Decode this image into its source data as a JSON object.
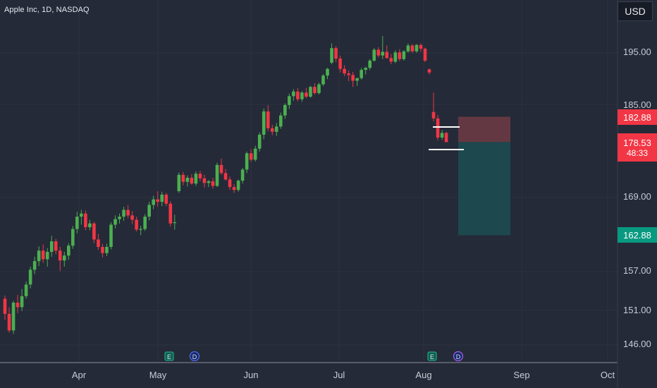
{
  "header": {
    "symbol_line": "Apple Inc, 1D, NASDAQ"
  },
  "currency": "USD",
  "chart_data": {
    "type": "candlestick",
    "symbol": "Apple Inc",
    "interval": "1D",
    "exchange": "NASDAQ",
    "colors": {
      "up": "#4caf50",
      "down": "#f23645",
      "background": "#242a38",
      "stop_zone": "#6b3a44",
      "target_zone": "#1e4a4e",
      "price_badge_red": "#f23645",
      "price_badge_green": "#089981"
    },
    "y_ticks": [
      "195.00",
      "185.00",
      "169.00",
      "157.00",
      "151.00",
      "146.00"
    ],
    "x_ticks": [
      "Apr",
      "May",
      "Jun",
      "Jul",
      "Aug",
      "Sep",
      "Oct"
    ],
    "price_labels": {
      "stop": "182.88",
      "current": "178.53",
      "countdown": "48:33",
      "target": "162.88"
    },
    "levels": {
      "stop": 182.88,
      "entry": 178.53,
      "target": 162.88
    },
    "event_markers": [
      {
        "label": "E",
        "date": "Apr 28"
      },
      {
        "label": "D",
        "date": "May 11"
      },
      {
        "label": "E",
        "date": "Aug 3"
      },
      {
        "label": "D",
        "date": "Aug 11"
      }
    ],
    "ohlc": [
      [
        152.8,
        153.3,
        149.6,
        150.5
      ],
      [
        150.5,
        151.5,
        147.8,
        148.1
      ],
      [
        148.1,
        152.5,
        147.6,
        152.2
      ],
      [
        152.2,
        153.4,
        150.6,
        151.5
      ],
      [
        151.5,
        154.3,
        150.9,
        153.2
      ],
      [
        153.2,
        155.5,
        152.8,
        155.0
      ],
      [
        155.0,
        157.8,
        154.4,
        157.3
      ],
      [
        157.3,
        159.4,
        156.6,
        158.7
      ],
      [
        158.7,
        161.1,
        157.9,
        160.4
      ],
      [
        160.4,
        161.4,
        158.4,
        159.0
      ],
      [
        159.0,
        160.8,
        157.8,
        160.2
      ],
      [
        160.2,
        162.8,
        159.4,
        161.9
      ],
      [
        161.9,
        162.3,
        159.8,
        160.4
      ],
      [
        160.4,
        161.0,
        157.1,
        158.8
      ],
      [
        158.8,
        160.2,
        157.8,
        159.6
      ],
      [
        159.6,
        161.6,
        158.9,
        161.2
      ],
      [
        161.2,
        164.4,
        160.7,
        163.9
      ],
      [
        163.9,
        166.7,
        163.2,
        165.9
      ],
      [
        165.9,
        167.0,
        164.6,
        166.4
      ],
      [
        166.4,
        166.9,
        163.7,
        164.2
      ],
      [
        164.2,
        165.4,
        163.7,
        164.8
      ],
      [
        164.8,
        165.1,
        161.6,
        162.2
      ],
      [
        162.2,
        163.1,
        160.5,
        161.0
      ],
      [
        161.0,
        161.5,
        159.3,
        160.0
      ],
      [
        160.0,
        161.5,
        159.5,
        161.0
      ],
      [
        161.0,
        165.0,
        160.6,
        164.6
      ],
      [
        164.6,
        166.1,
        164.0,
        165.5
      ],
      [
        165.5,
        166.4,
        164.8,
        165.9
      ],
      [
        165.9,
        167.5,
        165.2,
        167.0
      ],
      [
        167.0,
        167.8,
        165.6,
        166.1
      ],
      [
        166.1,
        166.8,
        164.7,
        165.4
      ],
      [
        165.4,
        165.9,
        163.5,
        163.8
      ],
      [
        163.8,
        164.4,
        162.9,
        163.9
      ],
      [
        163.9,
        166.3,
        163.6,
        165.9
      ],
      [
        165.9,
        168.3,
        165.3,
        167.8
      ],
      [
        167.8,
        169.3,
        167.1,
        168.7
      ],
      [
        168.7,
        170.1,
        167.5,
        168.3
      ],
      [
        168.3,
        170.0,
        167.6,
        169.5
      ],
      [
        169.5,
        169.8,
        167.6,
        168.0
      ],
      [
        168.0,
        168.4,
        164.3,
        164.8
      ],
      [
        164.9,
        166.2,
        163.8,
        165.0
      ],
      [
        170.1,
        173.3,
        169.8,
        172.9
      ],
      [
        172.9,
        173.4,
        171.1,
        171.7
      ],
      [
        171.7,
        172.8,
        170.9,
        172.4
      ],
      [
        172.4,
        173.0,
        171.2,
        171.4
      ],
      [
        171.4,
        173.5,
        171.0,
        173.1
      ],
      [
        173.1,
        173.6,
        171.8,
        172.3
      ],
      [
        172.3,
        172.9,
        170.7,
        171.5
      ],
      [
        171.5,
        172.0,
        170.8,
        171.8
      ],
      [
        171.8,
        172.4,
        170.5,
        171.0
      ],
      [
        171.0,
        175.0,
        170.8,
        174.6
      ],
      [
        174.6,
        175.7,
        172.9,
        173.2
      ],
      [
        173.2,
        173.9,
        171.9,
        172.1
      ],
      [
        172.1,
        172.6,
        170.3,
        170.8
      ],
      [
        170.8,
        171.3,
        169.8,
        170.3
      ],
      [
        170.3,
        172.1,
        170.0,
        171.9
      ],
      [
        171.9,
        174.1,
        171.4,
        173.8
      ],
      [
        173.8,
        176.9,
        173.2,
        176.6
      ],
      [
        176.6,
        177.3,
        175.1,
        175.5
      ],
      [
        175.5,
        177.9,
        175.2,
        177.4
      ],
      [
        177.4,
        180.2,
        176.9,
        179.8
      ],
      [
        179.8,
        184.3,
        179.0,
        183.8
      ],
      [
        183.8,
        184.9,
        180.4,
        180.9
      ],
      [
        180.9,
        181.5,
        179.7,
        180.3
      ],
      [
        180.3,
        181.8,
        179.6,
        181.2
      ],
      [
        181.2,
        183.6,
        180.8,
        183.1
      ],
      [
        183.1,
        185.2,
        182.5,
        184.9
      ],
      [
        184.9,
        187.1,
        184.2,
        186.6
      ],
      [
        186.6,
        188.0,
        185.7,
        187.5
      ],
      [
        187.5,
        188.2,
        185.6,
        186.0
      ],
      [
        186.0,
        187.6,
        185.5,
        187.3
      ],
      [
        187.3,
        188.2,
        186.2,
        186.5
      ],
      [
        186.5,
        188.6,
        186.3,
        188.4
      ],
      [
        188.4,
        189.1,
        186.9,
        187.2
      ],
      [
        187.2,
        189.2,
        186.9,
        188.9
      ],
      [
        188.9,
        190.9,
        188.6,
        190.6
      ],
      [
        190.6,
        192.1,
        189.9,
        191.9
      ],
      [
        193.1,
        196.8,
        192.8,
        195.9
      ],
      [
        195.9,
        196.3,
        193.2,
        193.9
      ],
      [
        193.9,
        194.5,
        191.2,
        191.9
      ],
      [
        191.9,
        192.6,
        190.5,
        191.0
      ],
      [
        191.0,
        191.6,
        189.5,
        190.7
      ],
      [
        190.7,
        191.3,
        188.4,
        189.6
      ],
      [
        189.6,
        190.2,
        188.6,
        190.1
      ],
      [
        190.1,
        192.1,
        189.8,
        191.7
      ],
      [
        191.7,
        192.3,
        190.8,
        192.1
      ],
      [
        192.1,
        193.8,
        191.7,
        193.5
      ],
      [
        193.5,
        195.9,
        193.3,
        195.6
      ],
      [
        195.6,
        196.1,
        194.1,
        194.5
      ],
      [
        194.5,
        198.2,
        193.8,
        195.2
      ],
      [
        195.2,
        196.4,
        193.9,
        194.0
      ],
      [
        194.0,
        194.8,
        192.8,
        193.3
      ],
      [
        193.3,
        195.5,
        193.0,
        195.1
      ],
      [
        195.1,
        195.7,
        193.4,
        193.8
      ],
      [
        193.8,
        195.5,
        193.5,
        195.3
      ],
      [
        195.3,
        196.8,
        195.0,
        196.4
      ],
      [
        196.4,
        196.7,
        195.0,
        195.3
      ],
      [
        195.3,
        196.7,
        195.0,
        196.5
      ],
      [
        196.5,
        196.8,
        195.2,
        195.8
      ],
      [
        195.8,
        196.0,
        193.2,
        193.5
      ],
      [
        191.8,
        192.0,
        190.8,
        191.2
      ],
      [
        183.7,
        187.3,
        182.1,
        182.6
      ],
      [
        182.6,
        183.2,
        178.8,
        179.3
      ],
      [
        179.3,
        180.6,
        178.9,
        180.1
      ],
      [
        180.1,
        180.3,
        178.5,
        178.53
      ]
    ]
  }
}
